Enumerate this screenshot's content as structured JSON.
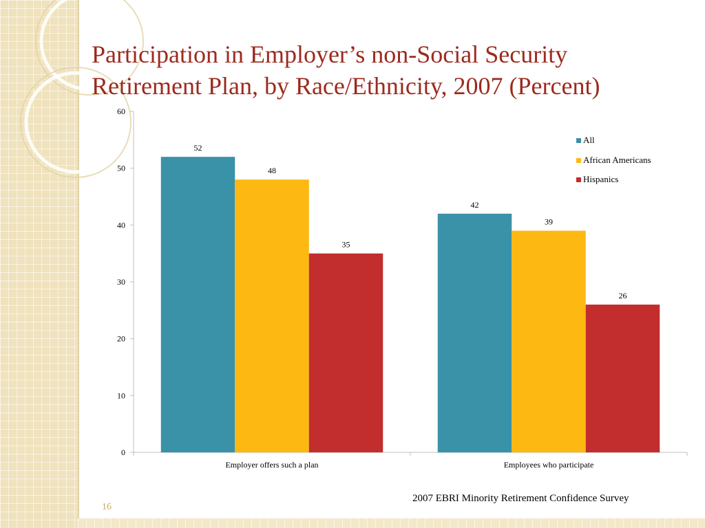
{
  "slide": {
    "title": "Participation in Employer’s non-Social Security Retirement Plan, by Race/Ethnicity, 2007 (Percent)",
    "source": "2007 EBRI Minority Retirement Confidence Survey",
    "page_number": "16"
  },
  "colors": {
    "title": "#9c2a1e",
    "all": "#3a92a8",
    "african_americans": "#fdb812",
    "hispanics": "#c22d2e",
    "background_band": "#efe2bd"
  },
  "chart_data": {
    "type": "bar",
    "title": "",
    "xlabel": "",
    "ylabel": "",
    "categories": [
      "Employer offers such a plan",
      "Employees who participate"
    ],
    "series": [
      {
        "name": "All",
        "values": [
          52,
          42
        ],
        "color": "#3a92a8"
      },
      {
        "name": "African Americans",
        "values": [
          48,
          39
        ],
        "color": "#fdb812"
      },
      {
        "name": "Hispanics",
        "values": [
          35,
          26
        ],
        "color": "#c22d2e"
      }
    ],
    "ylim": [
      0,
      60
    ],
    "yticks": [
      0,
      10,
      20,
      30,
      40,
      50,
      60
    ],
    "data_labels": true,
    "grid": false,
    "legend": "top-right"
  }
}
